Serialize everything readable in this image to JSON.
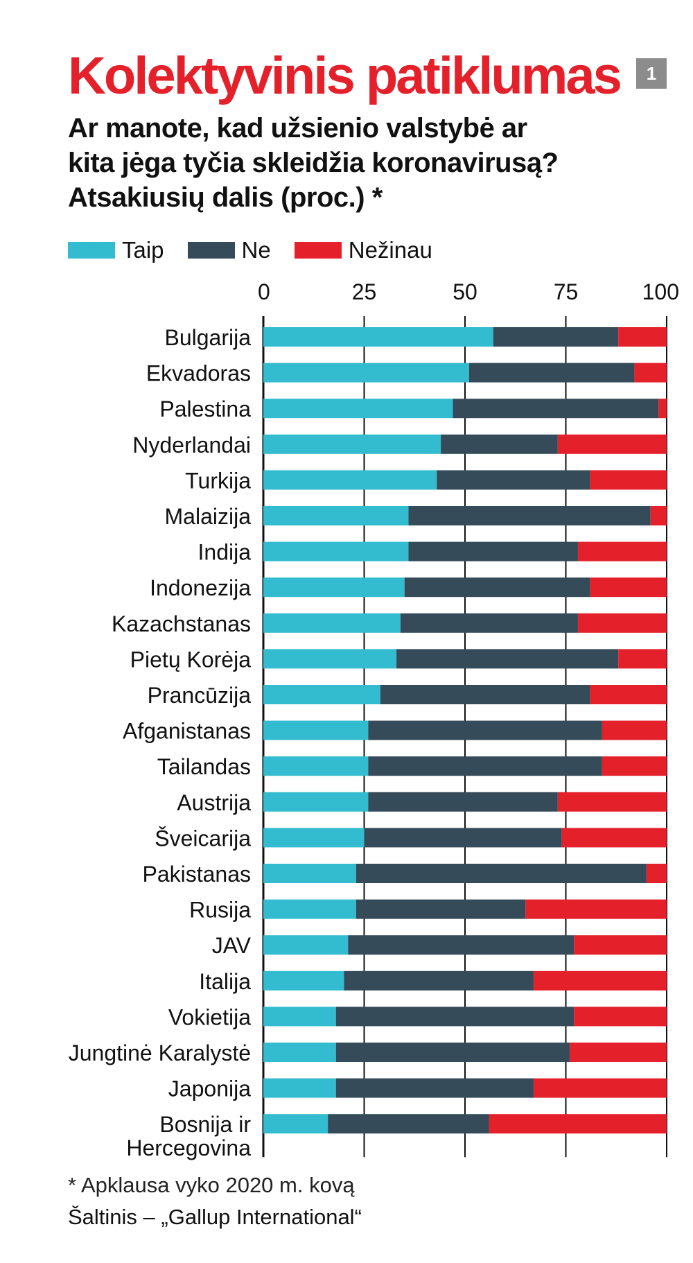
{
  "header": {
    "title": "Kolektyvinis patiklumas",
    "badge": "1",
    "subtitle_lines": [
      "Ar manote, kad užsienio valstybė ar",
      "kita jėga tyčia skleidžia koronavirusą?",
      "Atsakiusių dalis (proc.) *"
    ]
  },
  "footer": {
    "note": "* Apklausa vyko 2020 m. kovą",
    "source": "Šaltinis – „Gallup International“"
  },
  "colors": {
    "title": "#e4202a",
    "taip": "#33bccf",
    "ne": "#364b59",
    "nezinau": "#e4202a",
    "badge": "#8c8c8c"
  },
  "chart_data": {
    "type": "bar",
    "orientation": "horizontal",
    "stacked": true,
    "xlim": [
      0,
      100
    ],
    "xticks": [
      "0",
      "25",
      "50",
      "75",
      "100"
    ],
    "x_axis_position": "top",
    "grid": true,
    "legend": "top-left",
    "categories": [
      [
        "Bulgarija"
      ],
      [
        "Ekvadoras"
      ],
      [
        "Palestina"
      ],
      [
        "Nyderlandai"
      ],
      [
        "Turkija"
      ],
      [
        "Malaizija"
      ],
      [
        "Indija"
      ],
      [
        "Indonezija"
      ],
      [
        "Kazachstanas"
      ],
      [
        "Pietų Korėja"
      ],
      [
        "Prancūzija"
      ],
      [
        "Afganistanas"
      ],
      [
        "Tailandas"
      ],
      [
        "Austrija"
      ],
      [
        "Šveicarija"
      ],
      [
        "Pakistanas"
      ],
      [
        "Rusija"
      ],
      [
        "JAV"
      ],
      [
        "Italija"
      ],
      [
        "Vokietija"
      ],
      [
        "Jungtinė Karalystė"
      ],
      [
        "Japonija"
      ],
      [
        "Bosnija ir",
        "Hercegovina"
      ]
    ],
    "series": [
      {
        "name": "Taip",
        "color": "#33bccf",
        "values": [
          57,
          51,
          47,
          44,
          43,
          36,
          36,
          35,
          34,
          33,
          29,
          26,
          26,
          26,
          25,
          23,
          23,
          21,
          20,
          18,
          18,
          18,
          16
        ]
      },
      {
        "name": "Ne",
        "color": "#364b59",
        "values": [
          31,
          41,
          51,
          29,
          38,
          60,
          42,
          46,
          44,
          55,
          52,
          58,
          58,
          47,
          49,
          72,
          42,
          56,
          47,
          59,
          58,
          49,
          40
        ]
      },
      {
        "name": "Nežinau",
        "color": "#e4202a",
        "values": [
          12,
          8,
          2,
          27,
          19,
          4,
          22,
          19,
          22,
          12,
          19,
          16,
          16,
          27,
          26,
          5,
          35,
          23,
          33,
          23,
          24,
          33,
          44
        ]
      }
    ]
  }
}
